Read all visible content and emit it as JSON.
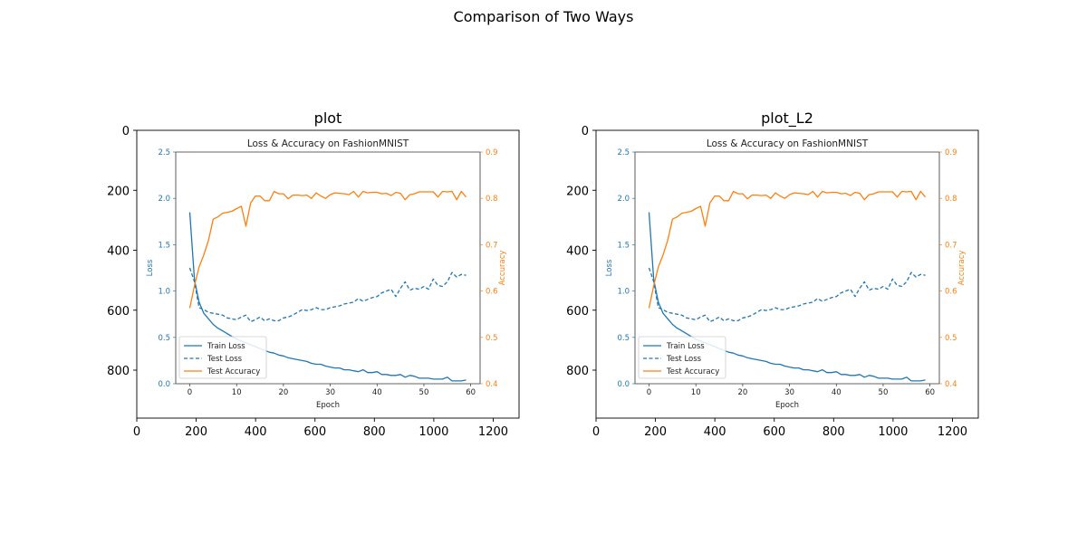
{
  "figure": {
    "title": "Comparison of Two Ways"
  },
  "colors": {
    "train": "#1f77b4",
    "test": "#1f77b4",
    "accuracy": "#ff7f0e",
    "loss_axis": "#1f77b4",
    "acc_axis": "#ff7f0e"
  },
  "outer_axes": {
    "x_ticks": [
      0,
      200,
      400,
      600,
      800,
      1000,
      1200
    ],
    "y_ticks": [
      0,
      200,
      400,
      600,
      800
    ],
    "xlim": [
      0,
      1287
    ],
    "ylim": [
      960,
      0
    ]
  },
  "panels": [
    {
      "title": "plot"
    },
    {
      "title": "plot_L2"
    }
  ],
  "chart_data": [
    {
      "type": "line",
      "title": "Loss & Accuracy on FashionMNIST",
      "xlabel": "Epoch",
      "ylabel": "Loss",
      "y2label": "Accuracy",
      "xlim": [
        -3,
        62
      ],
      "ylim": [
        0,
        2.5
      ],
      "y2lim": [
        0.4,
        0.9
      ],
      "x_ticks": [
        0,
        10,
        20,
        30,
        40,
        50,
        60
      ],
      "y_ticks": [
        0.0,
        0.5,
        1.0,
        1.5,
        2.0,
        2.5
      ],
      "y2_ticks": [
        0.4,
        0.5,
        0.6,
        0.7,
        0.8,
        0.9
      ],
      "legend": "lower-left",
      "x": [
        0,
        1,
        2,
        3,
        4,
        5,
        6,
        7,
        8,
        9,
        10,
        11,
        12,
        13,
        14,
        15,
        16,
        17,
        18,
        19,
        20,
        21,
        22,
        23,
        24,
        25,
        26,
        27,
        28,
        29,
        30,
        31,
        32,
        33,
        34,
        35,
        36,
        37,
        38,
        39,
        40,
        41,
        42,
        43,
        44,
        45,
        46,
        47,
        48,
        49,
        50,
        51,
        52,
        53,
        54,
        55,
        56,
        57,
        58,
        59
      ],
      "series": [
        {
          "name": "Train Loss",
          "axis": "left",
          "style": "solid",
          "values": [
            1.85,
            1.12,
            0.88,
            0.76,
            0.7,
            0.64,
            0.6,
            0.57,
            0.54,
            0.51,
            0.48,
            0.46,
            0.44,
            0.42,
            0.4,
            0.38,
            0.36,
            0.34,
            0.33,
            0.31,
            0.3,
            0.28,
            0.27,
            0.26,
            0.25,
            0.24,
            0.22,
            0.21,
            0.21,
            0.19,
            0.18,
            0.17,
            0.17,
            0.15,
            0.15,
            0.14,
            0.13,
            0.15,
            0.12,
            0.12,
            0.13,
            0.1,
            0.1,
            0.09,
            0.09,
            0.1,
            0.07,
            0.09,
            0.08,
            0.06,
            0.06,
            0.06,
            0.05,
            0.05,
            0.05,
            0.07,
            0.03,
            0.03,
            0.03,
            0.04
          ]
        },
        {
          "name": "Test Loss",
          "axis": "left",
          "style": "dashed",
          "values": [
            1.25,
            1.1,
            0.82,
            0.8,
            0.77,
            0.76,
            0.75,
            0.74,
            0.71,
            0.7,
            0.69,
            0.72,
            0.74,
            0.67,
            0.69,
            0.72,
            0.68,
            0.7,
            0.68,
            0.68,
            0.71,
            0.72,
            0.74,
            0.77,
            0.8,
            0.79,
            0.8,
            0.82,
            0.8,
            0.8,
            0.82,
            0.83,
            0.84,
            0.86,
            0.87,
            0.88,
            0.92,
            0.89,
            0.91,
            0.93,
            0.94,
            0.98,
            1.0,
            1.02,
            0.94,
            1.03,
            1.1,
            1.01,
            1.03,
            1.02,
            1.05,
            1.02,
            1.13,
            1.06,
            1.05,
            1.1,
            1.2,
            1.15,
            1.18,
            1.17
          ]
        },
        {
          "name": "Test Accuracy",
          "axis": "right",
          "style": "solid",
          "values": [
            0.563,
            0.612,
            0.652,
            0.678,
            0.71,
            0.755,
            0.76,
            0.768,
            0.77,
            0.772,
            0.778,
            0.783,
            0.74,
            0.79,
            0.805,
            0.805,
            0.795,
            0.795,
            0.815,
            0.81,
            0.81,
            0.799,
            0.807,
            0.807,
            0.806,
            0.807,
            0.8,
            0.812,
            0.805,
            0.8,
            0.808,
            0.812,
            0.811,
            0.81,
            0.808,
            0.815,
            0.803,
            0.815,
            0.812,
            0.813,
            0.813,
            0.81,
            0.811,
            0.806,
            0.813,
            0.811,
            0.797,
            0.808,
            0.81,
            0.814,
            0.814,
            0.814,
            0.814,
            0.803,
            0.815,
            0.814,
            0.815,
            0.797,
            0.815,
            0.803
          ]
        }
      ]
    },
    {
      "type": "line",
      "title": "Loss & Accuracy on FashionMNIST",
      "xlabel": "Epoch",
      "ylabel": "Loss",
      "y2label": "Accuracy",
      "xlim": [
        -3,
        62
      ],
      "ylim": [
        0,
        2.5
      ],
      "y2lim": [
        0.4,
        0.9
      ],
      "x_ticks": [
        0,
        10,
        20,
        30,
        40,
        50,
        60
      ],
      "y_ticks": [
        0.0,
        0.5,
        1.0,
        1.5,
        2.0,
        2.5
      ],
      "y2_ticks": [
        0.4,
        0.5,
        0.6,
        0.7,
        0.8,
        0.9
      ],
      "legend": "lower-left",
      "x": [
        0,
        1,
        2,
        3,
        4,
        5,
        6,
        7,
        8,
        9,
        10,
        11,
        12,
        13,
        14,
        15,
        16,
        17,
        18,
        19,
        20,
        21,
        22,
        23,
        24,
        25,
        26,
        27,
        28,
        29,
        30,
        31,
        32,
        33,
        34,
        35,
        36,
        37,
        38,
        39,
        40,
        41,
        42,
        43,
        44,
        45,
        46,
        47,
        48,
        49,
        50,
        51,
        52,
        53,
        54,
        55,
        56,
        57,
        58,
        59
      ],
      "series": [
        {
          "name": "Train Loss",
          "axis": "left",
          "style": "solid",
          "values": [
            1.85,
            1.12,
            0.88,
            0.76,
            0.7,
            0.64,
            0.6,
            0.57,
            0.54,
            0.51,
            0.48,
            0.46,
            0.44,
            0.42,
            0.4,
            0.38,
            0.36,
            0.34,
            0.33,
            0.31,
            0.3,
            0.28,
            0.27,
            0.26,
            0.25,
            0.24,
            0.22,
            0.21,
            0.21,
            0.19,
            0.18,
            0.17,
            0.17,
            0.15,
            0.15,
            0.14,
            0.13,
            0.15,
            0.12,
            0.12,
            0.13,
            0.1,
            0.1,
            0.09,
            0.09,
            0.1,
            0.07,
            0.09,
            0.08,
            0.06,
            0.06,
            0.06,
            0.05,
            0.05,
            0.05,
            0.07,
            0.03,
            0.03,
            0.03,
            0.04
          ]
        },
        {
          "name": "Test Loss",
          "axis": "left",
          "style": "dashed",
          "values": [
            1.25,
            1.1,
            0.82,
            0.8,
            0.77,
            0.76,
            0.75,
            0.74,
            0.71,
            0.7,
            0.69,
            0.72,
            0.74,
            0.67,
            0.69,
            0.72,
            0.68,
            0.7,
            0.68,
            0.68,
            0.71,
            0.72,
            0.74,
            0.77,
            0.8,
            0.79,
            0.8,
            0.82,
            0.8,
            0.8,
            0.82,
            0.83,
            0.84,
            0.86,
            0.87,
            0.88,
            0.92,
            0.89,
            0.91,
            0.93,
            0.94,
            0.98,
            1.0,
            1.02,
            0.94,
            1.03,
            1.1,
            1.01,
            1.03,
            1.02,
            1.05,
            1.02,
            1.13,
            1.06,
            1.05,
            1.1,
            1.2,
            1.15,
            1.18,
            1.17
          ]
        },
        {
          "name": "Test Accuracy",
          "axis": "right",
          "style": "solid",
          "values": [
            0.563,
            0.612,
            0.652,
            0.678,
            0.71,
            0.755,
            0.76,
            0.768,
            0.77,
            0.772,
            0.778,
            0.783,
            0.74,
            0.79,
            0.805,
            0.805,
            0.795,
            0.795,
            0.815,
            0.81,
            0.81,
            0.799,
            0.807,
            0.807,
            0.806,
            0.807,
            0.8,
            0.812,
            0.805,
            0.8,
            0.808,
            0.812,
            0.811,
            0.81,
            0.808,
            0.815,
            0.803,
            0.815,
            0.812,
            0.813,
            0.813,
            0.81,
            0.811,
            0.806,
            0.813,
            0.811,
            0.797,
            0.808,
            0.81,
            0.814,
            0.814,
            0.814,
            0.814,
            0.803,
            0.815,
            0.814,
            0.815,
            0.797,
            0.815,
            0.803
          ]
        }
      ]
    }
  ]
}
